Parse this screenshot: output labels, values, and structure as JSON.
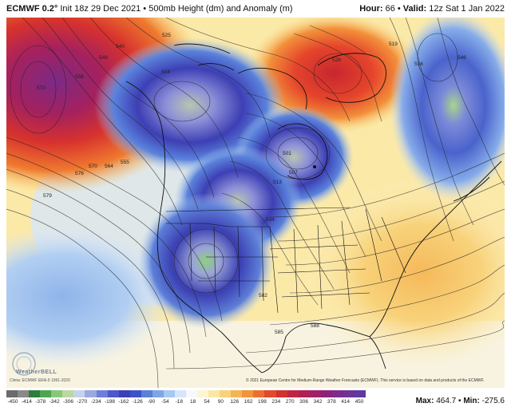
{
  "header": {
    "title_bold": "ECMWF 0.2°",
    "title_rest": " Init 18z 29 Dec 2021 • 500mb Height (dm) and Anomaly (m)",
    "hour_label": "Hour:",
    "hour_value": " 66 • ",
    "valid_label": "Valid:",
    "valid_value": " 12z Sat 1 Jan 2022"
  },
  "footer": {
    "climatology": "Clima: ECMWF ERA-5 1991-2020",
    "copyright": "© 2021 European Centre for Medium-Range Weather Forecasts (ECMWF). This service is based on data and products of the ECMWF.",
    "brand": "WeatherBELL",
    "max_label": "Max:",
    "max_value": " 464.7 • ",
    "min_label": "Min:",
    "min_value": " -275.6"
  },
  "legend": {
    "colors": [
      "#6b6b6b",
      "#8a8a8a",
      "#2f7d3a",
      "#4ea54f",
      "#88c77a",
      "#bcd8a0",
      "#c5d3e8",
      "#9aa9df",
      "#6f7ed6",
      "#4c58c9",
      "#3a3fb3",
      "#3e52c8",
      "#5d7fd8",
      "#7ea6e6",
      "#a9c8f0",
      "#d6e6fa",
      "#f6f8fc",
      "#fdf6d2",
      "#fbe7a4",
      "#f8d27a",
      "#f5b453",
      "#f1943a",
      "#ec6f2e",
      "#e24a2c",
      "#d23130",
      "#c02440",
      "#b02052",
      "#a01f66",
      "#8d217a",
      "#7c2a8c",
      "#6e3396",
      "#5f3aa0"
    ],
    "labels": [
      "-450",
      "-414",
      "-378",
      "-342",
      "-306",
      "-270",
      "-234",
      "-198",
      "-162",
      "-126",
      "-90",
      "-54",
      "-18",
      "18",
      "54",
      "90",
      "126",
      "162",
      "198",
      "234",
      "270",
      "306",
      "342",
      "378",
      "414",
      "450"
    ]
  },
  "contour_labels": [
    {
      "text": "525",
      "name": "contour-label-525"
    },
    {
      "text": "528",
      "name": "contour-label-528"
    },
    {
      "text": "546",
      "name": "contour-label-546"
    },
    {
      "text": "540",
      "name": "contour-label-540"
    },
    {
      "text": "549",
      "name": "contour-label-549"
    },
    {
      "text": "558",
      "name": "contour-label-558"
    },
    {
      "text": "573",
      "name": "contour-label-573"
    },
    {
      "text": "504",
      "name": "contour-label-504"
    },
    {
      "text": "501",
      "name": "contour-label-501"
    },
    {
      "text": "507",
      "name": "contour-label-507"
    },
    {
      "text": "513",
      "name": "contour-label-513"
    },
    {
      "text": "516",
      "name": "contour-label-516"
    },
    {
      "text": "519",
      "name": "contour-label-519"
    },
    {
      "text": "534",
      "name": "contour-label-534"
    },
    {
      "text": "555",
      "name": "contour-label-555"
    },
    {
      "text": "564",
      "name": "contour-label-564"
    },
    {
      "text": "570",
      "name": "contour-label-570"
    },
    {
      "text": "576",
      "name": "contour-label-576"
    },
    {
      "text": "579",
      "name": "contour-label-579"
    },
    {
      "text": "582",
      "name": "contour-label-582"
    },
    {
      "text": "585",
      "name": "contour-label-585"
    },
    {
      "text": "588",
      "name": "contour-label-588"
    }
  ]
}
